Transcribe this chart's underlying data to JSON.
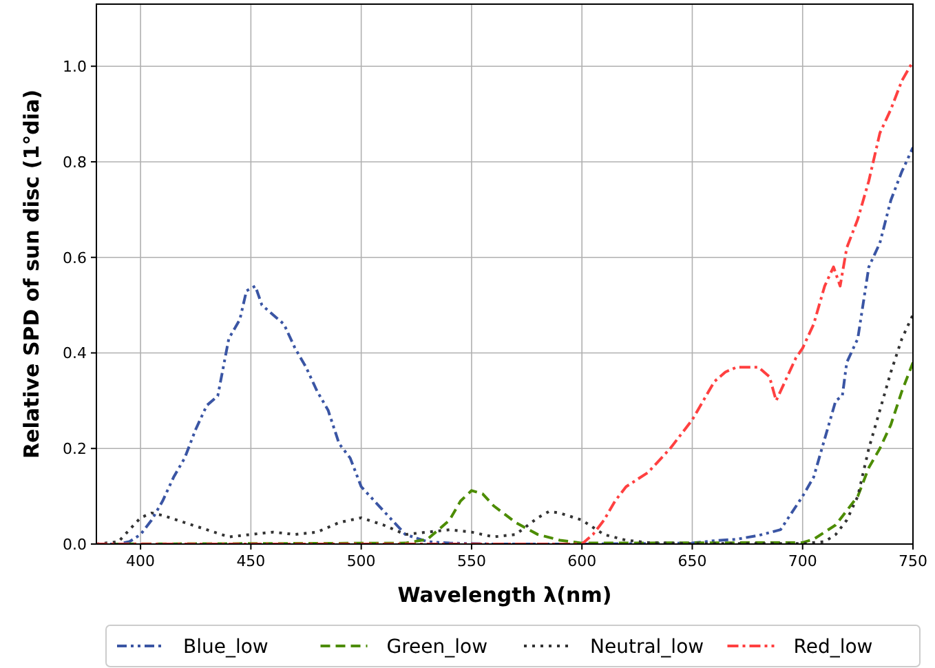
{
  "chart_data": {
    "type": "line",
    "xlabel": "Wavelength λ(nm)",
    "ylabel": "Relative SPD of sun disc (1°dia)",
    "xlim": [
      380,
      750
    ],
    "ylim": [
      0,
      1.13
    ],
    "xticks": [
      400,
      450,
      500,
      550,
      600,
      650,
      700,
      750
    ],
    "yticks": [
      {
        "value": 0,
        "label": "0.0"
      },
      0.2,
      0.4,
      0.6,
      0.8,
      {
        "value": 1,
        "label": "1.0"
      }
    ],
    "grid": true,
    "legend": "bottom",
    "series": [
      {
        "name": "Blue_low",
        "color": "#3a55a4",
        "line_style": "dashdotdot",
        "x": [
          380,
          390,
          395,
          400,
          405,
          410,
          415,
          420,
          425,
          430,
          435,
          440,
          445,
          448,
          452,
          455,
          460,
          465,
          470,
          475,
          480,
          485,
          490,
          495,
          500,
          510,
          520,
          530,
          540,
          560,
          600,
          650,
          660,
          670,
          680,
          690,
          700,
          705,
          710,
          715,
          718,
          720,
          725,
          730,
          735,
          740,
          745,
          750
        ],
        "values": [
          0,
          0,
          0.005,
          0.02,
          0.05,
          0.09,
          0.14,
          0.18,
          0.24,
          0.29,
          0.31,
          0.43,
          0.47,
          0.53,
          0.54,
          0.5,
          0.48,
          0.46,
          0.41,
          0.37,
          0.32,
          0.28,
          0.21,
          0.18,
          0.12,
          0.07,
          0.02,
          0.005,
          0.002,
          0,
          0,
          0.002,
          0.007,
          0.01,
          0.018,
          0.03,
          0.1,
          0.14,
          0.22,
          0.3,
          0.31,
          0.38,
          0.43,
          0.58,
          0.63,
          0.72,
          0.78,
          0.83
        ]
      },
      {
        "name": "Green_low",
        "color": "#4c8c00",
        "line_style": "dashed",
        "x": [
          380,
          520,
          530,
          540,
          545,
          550,
          555,
          560,
          570,
          580,
          590,
          600,
          700,
          705,
          710,
          715,
          720,
          725,
          730,
          735,
          740,
          745,
          750
        ],
        "values": [
          0,
          0.002,
          0.01,
          0.05,
          0.09,
          0.112,
          0.105,
          0.08,
          0.045,
          0.02,
          0.008,
          0.002,
          0.003,
          0.01,
          0.025,
          0.04,
          0.07,
          0.1,
          0.16,
          0.2,
          0.25,
          0.32,
          0.38
        ]
      },
      {
        "name": "Neutral_low",
        "color": "#333333",
        "line_style": "dotted",
        "x": [
          380,
          390,
          395,
          400,
          405,
          410,
          420,
          430,
          440,
          450,
          460,
          470,
          480,
          490,
          500,
          510,
          520,
          530,
          540,
          550,
          560,
          570,
          580,
          585,
          590,
          600,
          610,
          620,
          630,
          650,
          700,
          710,
          715,
          720,
          725,
          730,
          735,
          740,
          745,
          750
        ],
        "values": [
          0,
          0.005,
          0.03,
          0.055,
          0.065,
          0.06,
          0.045,
          0.03,
          0.015,
          0.02,
          0.025,
          0.02,
          0.025,
          0.045,
          0.055,
          0.04,
          0.02,
          0.025,
          0.03,
          0.025,
          0.015,
          0.02,
          0.055,
          0.068,
          0.065,
          0.05,
          0.02,
          0.008,
          0.003,
          0.001,
          0.001,
          0.005,
          0.02,
          0.05,
          0.1,
          0.2,
          0.28,
          0.36,
          0.43,
          0.48
        ]
      },
      {
        "name": "Red_low",
        "color": "#ff4040",
        "line_style": "dashdot",
        "x": [
          380,
          600,
          605,
          610,
          615,
          620,
          630,
          640,
          650,
          655,
          660,
          665,
          670,
          680,
          685,
          688,
          692,
          697,
          700,
          705,
          710,
          714,
          717,
          720,
          725,
          730,
          735,
          740,
          745,
          750
        ],
        "values": [
          0,
          0,
          0.02,
          0.05,
          0.09,
          0.12,
          0.15,
          0.2,
          0.26,
          0.3,
          0.34,
          0.36,
          0.37,
          0.37,
          0.35,
          0.3,
          0.34,
          0.39,
          0.41,
          0.46,
          0.54,
          0.58,
          0.54,
          0.62,
          0.68,
          0.76,
          0.86,
          0.91,
          0.97,
          1.01
        ]
      }
    ]
  }
}
